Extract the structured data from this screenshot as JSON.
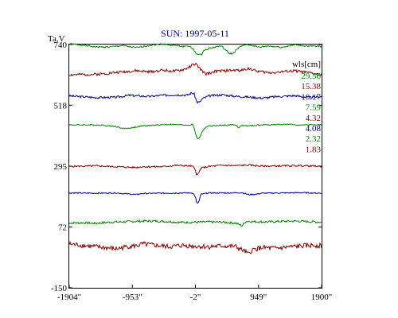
{
  "chart_data": {
    "type": "line",
    "title": "SUN: 1997-05-11",
    "ylabel": "Ta,V",
    "xlabel": "",
    "xlim": [
      -1904,
      1900
    ],
    "ylim": [
      -150,
      740
    ],
    "x_ticks": [
      {
        "value": -1904,
        "label": "-1904\""
      },
      {
        "value": -953,
        "label": "-953\""
      },
      {
        "value": -2,
        "label": "-2\""
      },
      {
        "value": 949,
        "label": "949\""
      },
      {
        "value": 1900,
        "label": "1900\""
      }
    ],
    "y_ticks": [
      {
        "value": 740,
        "label": "740"
      },
      {
        "value": 518,
        "label": "518"
      },
      {
        "value": 295,
        "label": "295"
      },
      {
        "value": 72,
        "label": "72"
      },
      {
        "value": -150,
        "label": "-150"
      }
    ],
    "legend_title": "wls[cm]",
    "legend_position": "right",
    "grid": false,
    "series": [
      {
        "name": "29.56",
        "color": "#008000",
        "noise": 3,
        "noise_seed": 1,
        "points": [
          [
            -1904,
            742
          ],
          [
            -1700,
            738
          ],
          [
            -1500,
            731
          ],
          [
            -1300,
            731
          ],
          [
            -1100,
            736
          ],
          [
            -900,
            728
          ],
          [
            -700,
            737
          ],
          [
            -500,
            742
          ],
          [
            -300,
            736
          ],
          [
            -200,
            733
          ],
          [
            -100,
            735
          ],
          [
            -40,
            723
          ],
          [
            30,
            703
          ],
          [
            80,
            702
          ],
          [
            130,
            719
          ],
          [
            200,
            726
          ],
          [
            300,
            731
          ],
          [
            380,
            735
          ],
          [
            420,
            728
          ],
          [
            500,
            708
          ],
          [
            560,
            706
          ],
          [
            650,
            728
          ],
          [
            750,
            740
          ],
          [
            850,
            737
          ],
          [
            950,
            730
          ],
          [
            1100,
            735
          ],
          [
            1300,
            730
          ],
          [
            1500,
            739
          ],
          [
            1700,
            734
          ],
          [
            1900,
            733
          ]
        ]
      },
      {
        "name": "15.38",
        "color": "#800000",
        "noise": 5,
        "noise_seed": 2,
        "points": [
          [
            -1904,
            629
          ],
          [
            -1500,
            631
          ],
          [
            -1100,
            640
          ],
          [
            -900,
            644
          ],
          [
            -700,
            640
          ],
          [
            -500,
            646
          ],
          [
            -300,
            642
          ],
          [
            -150,
            650
          ],
          [
            -50,
            665
          ],
          [
            0,
            669
          ],
          [
            50,
            656
          ],
          [
            100,
            643
          ],
          [
            150,
            632
          ],
          [
            220,
            636
          ],
          [
            300,
            642
          ],
          [
            500,
            645
          ],
          [
            700,
            646
          ],
          [
            800,
            653
          ],
          [
            900,
            644
          ],
          [
            1100,
            637
          ],
          [
            1300,
            640
          ],
          [
            1500,
            644
          ],
          [
            1700,
            637
          ],
          [
            1900,
            629
          ]
        ]
      },
      {
        "name": "10.17",
        "color": "#000080",
        "noise": 4,
        "noise_seed": 3,
        "points": [
          [
            -1904,
            552
          ],
          [
            -1500,
            546
          ],
          [
            -1200,
            547
          ],
          [
            -1000,
            554
          ],
          [
            -700,
            550
          ],
          [
            -500,
            554
          ],
          [
            -300,
            556
          ],
          [
            -120,
            555
          ],
          [
            -60,
            563
          ],
          [
            -20,
            559
          ],
          [
            20,
            530
          ],
          [
            60,
            528
          ],
          [
            100,
            541
          ],
          [
            200,
            552
          ],
          [
            400,
            556
          ],
          [
            600,
            551
          ],
          [
            800,
            548
          ],
          [
            1000,
            544
          ],
          [
            1200,
            549
          ],
          [
            1500,
            553
          ],
          [
            1700,
            546
          ],
          [
            1900,
            550
          ]
        ]
      },
      {
        "name": "7.59",
        "color": "#008000",
        "noise": 2,
        "noise_seed": 4,
        "points": [
          [
            -1904,
            446
          ],
          [
            -1600,
            446
          ],
          [
            -1400,
            445
          ],
          [
            -1200,
            440
          ],
          [
            -1100,
            433
          ],
          [
            -1000,
            434
          ],
          [
            -900,
            438
          ],
          [
            -800,
            442
          ],
          [
            -600,
            445
          ],
          [
            -400,
            448
          ],
          [
            -200,
            446
          ],
          [
            -100,
            445
          ],
          [
            -40,
            448
          ],
          [
            0,
            414
          ],
          [
            30,
            395
          ],
          [
            60,
            398
          ],
          [
            100,
            422
          ],
          [
            150,
            437
          ],
          [
            200,
            442
          ],
          [
            400,
            444
          ],
          [
            600,
            447
          ],
          [
            650,
            436
          ],
          [
            700,
            444
          ],
          [
            800,
            442
          ],
          [
            1000,
            446
          ],
          [
            1200,
            447
          ],
          [
            1400,
            448
          ],
          [
            1600,
            445
          ],
          [
            1800,
            447
          ],
          [
            1900,
            446
          ]
        ]
      },
      {
        "name": "4.32",
        "color": "#800000",
        "noise": 3,
        "noise_seed": 5,
        "points": [
          [
            -1904,
            294
          ],
          [
            -1500,
            296
          ],
          [
            -1200,
            293
          ],
          [
            -900,
            290
          ],
          [
            -800,
            293
          ],
          [
            -500,
            293
          ],
          [
            -300,
            298
          ],
          [
            -100,
            296
          ],
          [
            -40,
            294
          ],
          [
            0,
            280
          ],
          [
            20,
            262
          ],
          [
            50,
            270
          ],
          [
            80,
            288
          ],
          [
            200,
            294
          ],
          [
            400,
            298
          ],
          [
            600,
            297
          ],
          [
            800,
            299
          ],
          [
            1000,
            295
          ],
          [
            1300,
            296
          ],
          [
            1600,
            297
          ],
          [
            1900,
            294
          ]
        ]
      },
      {
        "name": "4.08",
        "color": "#000080",
        "noise": 2,
        "noise_seed": 6,
        "points": [
          [
            -1904,
            197
          ],
          [
            -1500,
            196
          ],
          [
            -1200,
            197
          ],
          [
            -1000,
            193
          ],
          [
            -900,
            191
          ],
          [
            -800,
            195
          ],
          [
            -500,
            196
          ],
          [
            -200,
            197
          ],
          [
            -40,
            197
          ],
          [
            0,
            182
          ],
          [
            20,
            156
          ],
          [
            50,
            165
          ],
          [
            80,
            192
          ],
          [
            200,
            197
          ],
          [
            500,
            197
          ],
          [
            700,
            198
          ],
          [
            800,
            191
          ],
          [
            900,
            192
          ],
          [
            1000,
            196
          ],
          [
            1300,
            197
          ],
          [
            1600,
            198
          ],
          [
            1900,
            196
          ]
        ]
      },
      {
        "name": "2.32",
        "color": "#008000",
        "noise": 4,
        "noise_seed": 7,
        "points": [
          [
            -1904,
            87
          ],
          [
            -1700,
            88
          ],
          [
            -1500,
            86
          ],
          [
            -1300,
            90
          ],
          [
            -1000,
            92
          ],
          [
            -800,
            94
          ],
          [
            -600,
            94
          ],
          [
            -400,
            92
          ],
          [
            -200,
            89
          ],
          [
            0,
            90
          ],
          [
            200,
            91
          ],
          [
            400,
            90
          ],
          [
            600,
            87
          ],
          [
            700,
            77
          ],
          [
            760,
            93
          ],
          [
            900,
            92
          ],
          [
            1100,
            91
          ],
          [
            1300,
            93
          ],
          [
            1500,
            94
          ],
          [
            1700,
            92
          ],
          [
            1900,
            90
          ]
        ]
      },
      {
        "name": "1.83",
        "color": "#800000",
        "noise": 9,
        "noise_seed": 8,
        "points": [
          [
            -1904,
            10
          ],
          [
            -1700,
            5
          ],
          [
            -1500,
            0
          ],
          [
            -1300,
            -5
          ],
          [
            -1200,
            -8
          ],
          [
            -1000,
            2
          ],
          [
            -900,
            3
          ],
          [
            -800,
            10
          ],
          [
            -600,
            5
          ],
          [
            -400,
            0
          ],
          [
            -200,
            5
          ],
          [
            0,
            2
          ],
          [
            200,
            0
          ],
          [
            400,
            3
          ],
          [
            600,
            1
          ],
          [
            750,
            -18
          ],
          [
            800,
            -28
          ],
          [
            850,
            -12
          ],
          [
            1000,
            -3
          ],
          [
            1200,
            -6
          ],
          [
            1400,
            -1
          ],
          [
            1600,
            3
          ],
          [
            1800,
            6
          ],
          [
            1900,
            3
          ]
        ]
      }
    ]
  }
}
